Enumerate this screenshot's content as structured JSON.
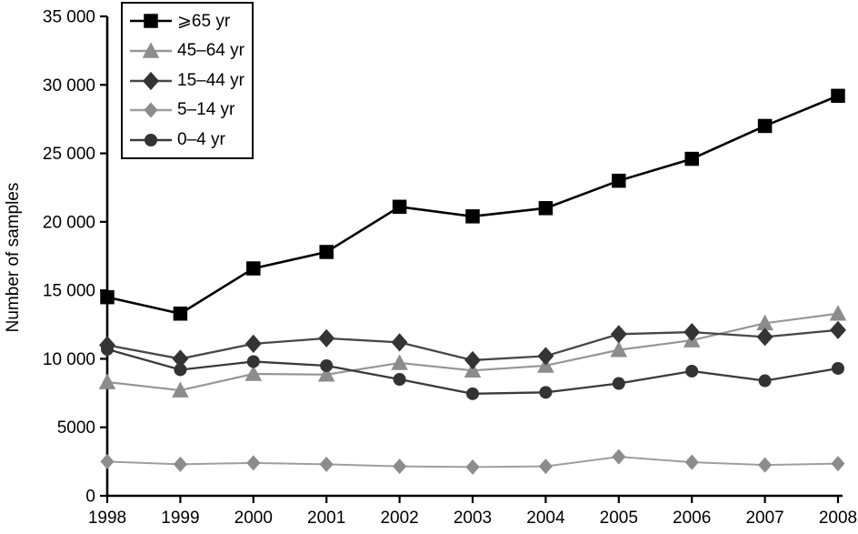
{
  "chart_data": {
    "type": "line",
    "title": "",
    "xlabel": "",
    "ylabel": "Number of samples",
    "x": [
      1998,
      1999,
      2000,
      2001,
      2002,
      2003,
      2004,
      2005,
      2006,
      2007,
      2008
    ],
    "x_tick_labels": [
      "1998",
      "1999",
      "2000",
      "2001",
      "2002",
      "2003",
      "2004",
      "2005",
      "2006",
      "2007",
      "2008"
    ],
    "ylim": [
      0,
      35000
    ],
    "y_tick_step": 5000,
    "y_tick_labels": [
      "0",
      "5000",
      "10 000",
      "15 000",
      "20 000",
      "25 000",
      "30 000",
      "35 000"
    ],
    "grid": false,
    "legend_position": "top-left",
    "background_color": "#ffffff",
    "axis_color": "#000000",
    "series": [
      {
        "name": "⩾65 yr",
        "marker": "square",
        "color": "#000000",
        "marker_color": "#000000",
        "values": [
          14500,
          13300,
          16600,
          17800,
          21100,
          20400,
          21000,
          23000,
          24600,
          27000,
          29200
        ]
      },
      {
        "name": "45–64 yr",
        "marker": "triangle",
        "color": "#969696",
        "marker_color": "#8c8c8c",
        "values": [
          8300,
          7700,
          8900,
          8850,
          9700,
          9150,
          9500,
          10650,
          11350,
          12600,
          13300
        ]
      },
      {
        "name": "15–44 yr",
        "marker": "diamond",
        "color": "#474747",
        "marker_color": "#343434",
        "values": [
          11000,
          10000,
          11100,
          11500,
          11200,
          9900,
          10200,
          11800,
          11950,
          11600,
          12100
        ]
      },
      {
        "name": "5–14 yr",
        "marker": "diamond",
        "color": "#9e9e9e",
        "marker_color": "#8c8c8c",
        "values": [
          2500,
          2300,
          2400,
          2300,
          2150,
          2100,
          2150,
          2850,
          2450,
          2250,
          2350
        ]
      },
      {
        "name": "0–4 yr",
        "marker": "circle",
        "color": "#3a3a3a",
        "marker_color": "#333333",
        "values": [
          10700,
          9200,
          9800,
          9500,
          8500,
          7450,
          7550,
          8200,
          9100,
          8400,
          9300
        ]
      }
    ]
  }
}
